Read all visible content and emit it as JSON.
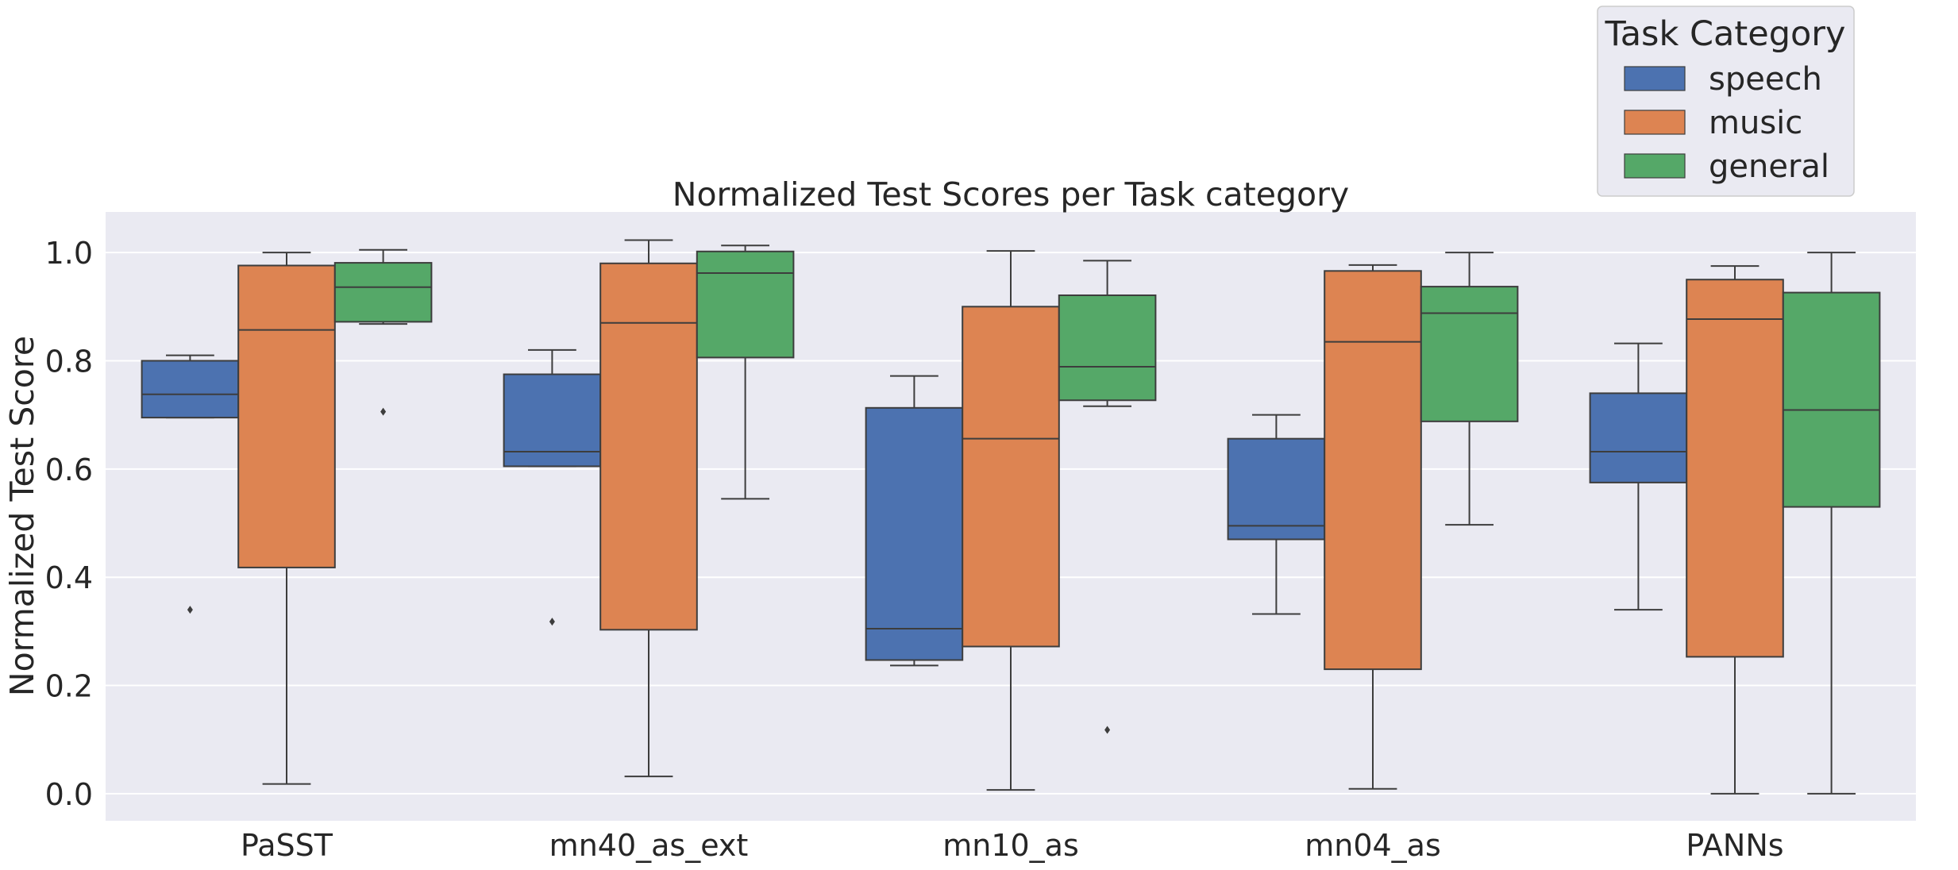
{
  "chart_data": {
    "type": "boxplot",
    "title": "Normalized Test Scores per Task category",
    "xlabel": "",
    "ylabel": "Normalized Test Score",
    "ylim": [
      -0.05,
      1.075
    ],
    "yticks": [
      "0.0",
      "0.2",
      "0.4",
      "0.6",
      "0.8",
      "1.0"
    ],
    "ytick_values": [
      0.0,
      0.2,
      0.4,
      0.6,
      0.8,
      1.0
    ],
    "categories": [
      "PaSST",
      "mn40_as_ext",
      "mn10_as",
      "mn04_as",
      "PANNs"
    ],
    "grid": true,
    "legend": {
      "title": "Task Category",
      "position": "top-right, above plot"
    },
    "series": [
      {
        "name": "speech",
        "color": "#4c72b0",
        "boxes": [
          {
            "whisker_low": 0.695,
            "q1": 0.695,
            "median": 0.738,
            "q3": 0.8,
            "whisker_high": 0.81,
            "outliers": [
              0.34
            ]
          },
          {
            "whisker_low": 0.605,
            "q1": 0.605,
            "median": 0.632,
            "q3": 0.775,
            "whisker_high": 0.82,
            "outliers": [
              0.318
            ]
          },
          {
            "whisker_low": 0.237,
            "q1": 0.247,
            "median": 0.305,
            "q3": 0.713,
            "whisker_high": 0.772,
            "outliers": []
          },
          {
            "whisker_low": 0.332,
            "q1": 0.47,
            "median": 0.495,
            "q3": 0.656,
            "whisker_high": 0.7,
            "outliers": []
          },
          {
            "whisker_low": 0.34,
            "q1": 0.575,
            "median": 0.632,
            "q3": 0.74,
            "whisker_high": 0.832,
            "outliers": []
          }
        ]
      },
      {
        "name": "music",
        "color": "#dd8452",
        "boxes": [
          {
            "whisker_low": 0.018,
            "q1": 0.418,
            "median": 0.857,
            "q3": 0.976,
            "whisker_high": 1.0,
            "outliers": []
          },
          {
            "whisker_low": 0.032,
            "q1": 0.303,
            "median": 0.87,
            "q3": 0.98,
            "whisker_high": 1.023,
            "outliers": []
          },
          {
            "whisker_low": 0.007,
            "q1": 0.272,
            "median": 0.656,
            "q3": 0.9,
            "whisker_high": 1.003,
            "outliers": []
          },
          {
            "whisker_low": 0.009,
            "q1": 0.23,
            "median": 0.835,
            "q3": 0.966,
            "whisker_high": 0.977,
            "outliers": []
          },
          {
            "whisker_low": 0.0,
            "q1": 0.253,
            "median": 0.877,
            "q3": 0.95,
            "whisker_high": 0.975,
            "outliers": []
          }
        ]
      },
      {
        "name": "general",
        "color": "#55a868",
        "boxes": [
          {
            "whisker_low": 0.868,
            "q1": 0.872,
            "median": 0.936,
            "q3": 0.981,
            "whisker_high": 1.005,
            "outliers": [
              0.706
            ]
          },
          {
            "whisker_low": 0.545,
            "q1": 0.806,
            "median": 0.962,
            "q3": 1.002,
            "whisker_high": 1.013,
            "outliers": []
          },
          {
            "whisker_low": 0.716,
            "q1": 0.727,
            "median": 0.789,
            "q3": 0.921,
            "whisker_high": 0.985,
            "outliers": [
              0.118
            ]
          },
          {
            "whisker_low": 0.497,
            "q1": 0.688,
            "median": 0.888,
            "q3": 0.937,
            "whisker_high": 1.0,
            "outliers": []
          },
          {
            "whisker_low": 0.0,
            "q1": 0.53,
            "median": 0.709,
            "q3": 0.926,
            "whisker_high": 1.0,
            "outliers": []
          }
        ]
      }
    ]
  },
  "colors": {
    "plot_background": "#eaeaf2",
    "grid": "#ffffff",
    "line": "#3d3d3d",
    "text": "#262626"
  }
}
